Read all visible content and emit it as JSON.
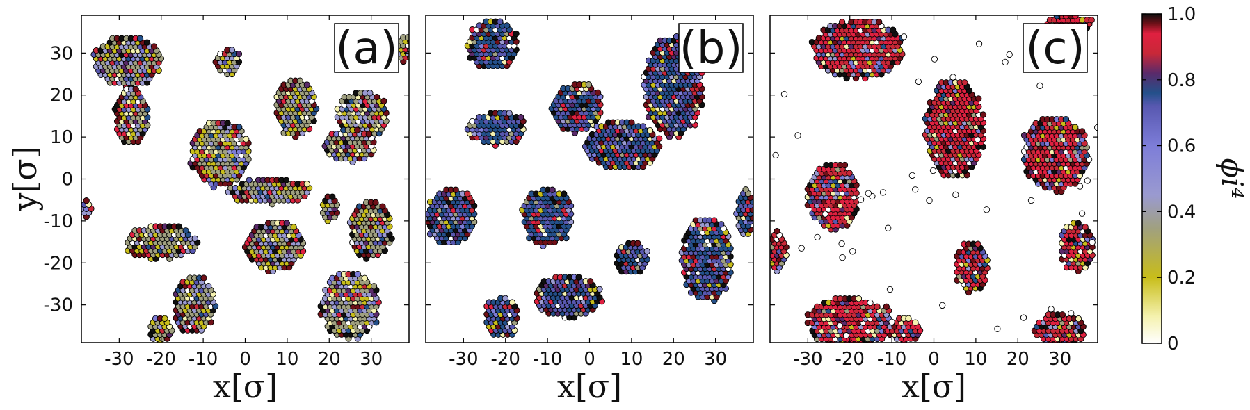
{
  "chart_data": [
    {
      "type": "scatter",
      "panel_label": "(a)",
      "xlabel": "x[σ]",
      "ylabel": "y[σ]",
      "xlim": [
        -39,
        39
      ],
      "ylim": [
        -39,
        39
      ],
      "xticks": [
        "-30",
        "-20",
        "-10",
        "0",
        "10",
        "20",
        "30"
      ],
      "yticks": [
        "30",
        "20",
        "10",
        "0",
        "-10",
        "-20",
        "-30"
      ],
      "dominant_order": 0.25,
      "clusters": [
        {
          "cx": -28,
          "cy": 28,
          "rx": 8,
          "ry": 6
        },
        {
          "cx": -27,
          "cy": 15,
          "rx": 4,
          "ry": 7
        },
        {
          "cx": -6,
          "cy": 6,
          "rx": 7,
          "ry": 8
        },
        {
          "cx": 6,
          "cy": -3,
          "rx": 10,
          "ry": 3
        },
        {
          "cx": 12,
          "cy": 17,
          "rx": 5,
          "ry": 7
        },
        {
          "cx": -4,
          "cy": 28,
          "rx": 3,
          "ry": 3
        },
        {
          "cx": 28,
          "cy": 15,
          "rx": 6,
          "ry": 6
        },
        {
          "cx": 25,
          "cy": 8,
          "rx": 6,
          "ry": 4
        },
        {
          "cx": -20,
          "cy": -15,
          "rx": 9,
          "ry": 4
        },
        {
          "cx": 7,
          "cy": -16,
          "rx": 7,
          "ry": 6
        },
        {
          "cx": 20,
          "cy": -7,
          "rx": 2,
          "ry": 3
        },
        {
          "cx": 30,
          "cy": -12,
          "rx": 5,
          "ry": 7
        },
        {
          "cx": -12,
          "cy": -30,
          "rx": 5,
          "ry": 7
        },
        {
          "cx": -20,
          "cy": -36,
          "rx": 3,
          "ry": 3
        },
        {
          "cx": 25,
          "cy": -30,
          "rx": 7,
          "ry": 8
        },
        {
          "cx": -38,
          "cy": -7,
          "rx": 2,
          "ry": 2
        },
        {
          "cx": 38,
          "cy": 31,
          "rx": 2,
          "ry": 3
        }
      ]
    },
    {
      "type": "scatter",
      "panel_label": "(b)",
      "xlabel": "x[σ]",
      "ylabel": "",
      "xlim": [
        -39,
        39
      ],
      "ylim": [
        -39,
        39
      ],
      "xticks": [
        "-30",
        "-20",
        "-10",
        "0",
        "10",
        "20",
        "30"
      ],
      "yticks": [],
      "dominant_order": 0.55,
      "clusters": [
        {
          "cx": -23,
          "cy": 32,
          "rx": 6,
          "ry": 6
        },
        {
          "cx": -22,
          "cy": 12,
          "rx": 7,
          "ry": 4
        },
        {
          "cx": -3,
          "cy": 17,
          "rx": 6,
          "ry": 6
        },
        {
          "cx": 8,
          "cy": 8,
          "rx": 9,
          "ry": 6
        },
        {
          "cx": 20,
          "cy": 22,
          "rx": 7,
          "ry": 12
        },
        {
          "cx": -33,
          "cy": -9,
          "rx": 6,
          "ry": 7
        },
        {
          "cx": -10,
          "cy": -9,
          "rx": 6,
          "ry": 7
        },
        {
          "cx": 10,
          "cy": -19,
          "rx": 4,
          "ry": 4
        },
        {
          "cx": 28,
          "cy": -19,
          "rx": 6,
          "ry": 10
        },
        {
          "cx": -5,
          "cy": -28,
          "rx": 8,
          "ry": 5
        },
        {
          "cx": -21,
          "cy": -33,
          "rx": 4,
          "ry": 5
        },
        {
          "cx": 37,
          "cy": -8,
          "rx": 2,
          "ry": 6
        }
      ]
    },
    {
      "type": "scatter",
      "panel_label": "(c)",
      "xlabel": "x[σ]",
      "ylabel": "",
      "xlim": [
        -39,
        39
      ],
      "ylim": [
        -39,
        39
      ],
      "xticks": [
        "-30",
        "-20",
        "-10",
        "0",
        "10",
        "20",
        "30"
      ],
      "yticks": [],
      "dominant_order": 0.8,
      "clusters": [
        {
          "cx": -18,
          "cy": 31,
          "rx": 11,
          "ry": 7
        },
        {
          "cx": 32,
          "cy": 37,
          "rx": 6,
          "ry": 2
        },
        {
          "cx": 5,
          "cy": 12,
          "rx": 7,
          "ry": 12
        },
        {
          "cx": -24,
          "cy": -4,
          "rx": 6,
          "ry": 8
        },
        {
          "cx": 29,
          "cy": 6,
          "rx": 8,
          "ry": 9
        },
        {
          "cx": 9,
          "cy": -21,
          "rx": 4,
          "ry": 6
        },
        {
          "cx": 34,
          "cy": -16,
          "rx": 4,
          "ry": 6
        },
        {
          "cx": -20,
          "cy": -34,
          "rx": 10,
          "ry": 6
        },
        {
          "cx": -7,
          "cy": -36,
          "rx": 4,
          "ry": 3
        },
        {
          "cx": 30,
          "cy": -36,
          "rx": 6,
          "ry": 4
        },
        {
          "cx": -37,
          "cy": -17,
          "rx": 2,
          "ry": 5
        }
      ],
      "free_particles": true
    }
  ],
  "colorbar": {
    "label": "ϕi⁴",
    "ticks": [
      "1.0",
      "0.8",
      "0.6",
      "0.4",
      "0.2",
      "0"
    ],
    "tick_values": [
      1.0,
      0.8,
      0.6,
      0.4,
      0.2,
      0.0
    ],
    "colors": [
      "#ffffff",
      "#f5f2b0",
      "#c8bd1a",
      "#a0a080",
      "#9a9ad0",
      "#7d7dd8",
      "#5858b0",
      "#24508a",
      "#5a2a6a",
      "#c82838",
      "#e02040",
      "#701018",
      "#101010"
    ]
  }
}
